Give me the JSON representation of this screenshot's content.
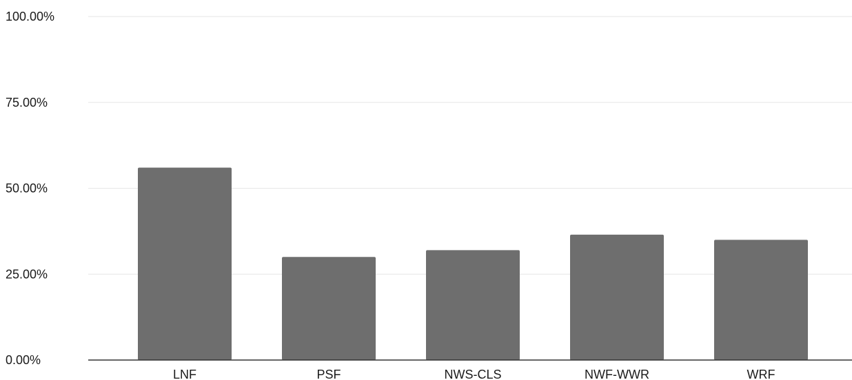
{
  "chart_data": {
    "type": "bar",
    "categories": [
      "LNF",
      "PSF",
      "NWS-CLS",
      "NWF-WWR",
      "WRF"
    ],
    "values": [
      56.0,
      30.0,
      32.0,
      36.5,
      35.0
    ],
    "ylim": [
      0,
      100
    ],
    "yticks": [
      0,
      25,
      50,
      75,
      100
    ],
    "ytick_labels": [
      "0.00%",
      "25.00%",
      "50.00%",
      "75.00%",
      "100.00%"
    ],
    "grid": true,
    "legend": "none",
    "colors": {
      "bar": "#6e6e6e",
      "grid": "#e6e6e6",
      "axis": "#333333"
    }
  }
}
